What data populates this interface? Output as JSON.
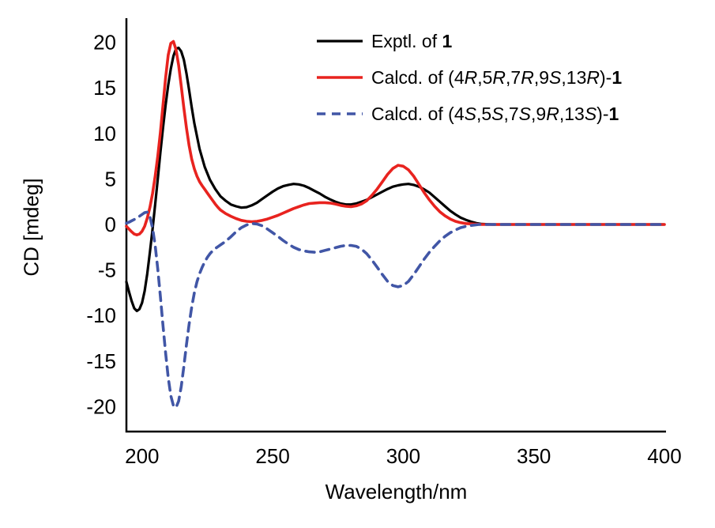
{
  "chart_data": {
    "type": "line",
    "title": "",
    "xlabel": "Wavelength/nm",
    "ylabel": "CD [mdeg]",
    "xlim": [
      194,
      400
    ],
    "ylim": [
      -22.7,
      22.7
    ],
    "x_ticks": [
      200,
      250,
      300,
      350,
      400
    ],
    "y_ticks": [
      20,
      15,
      10,
      5,
      0,
      -5,
      -10,
      -15,
      -20
    ],
    "grid": false,
    "legend_position": "upper-right-inside",
    "series": [
      {
        "key": "exptl",
        "name": "Exptl. of 1",
        "color": "#000000",
        "style": "solid",
        "width": 3.2,
        "points": [
          [
            194,
            -6.3
          ],
          [
            195,
            -7.4
          ],
          [
            196,
            -8.4
          ],
          [
            197,
            -9.2
          ],
          [
            198,
            -9.5
          ],
          [
            199,
            -9.3
          ],
          [
            200,
            -8.6
          ],
          [
            201,
            -7.3
          ],
          [
            202,
            -5.4
          ],
          [
            203,
            -3.0
          ],
          [
            204,
            -0.5
          ],
          [
            205,
            2.2
          ],
          [
            206,
            5.0
          ],
          [
            207,
            7.9
          ],
          [
            208,
            10.6
          ],
          [
            209,
            13.1
          ],
          [
            210,
            15.3
          ],
          [
            211,
            17.1
          ],
          [
            212,
            18.5
          ],
          [
            213,
            19.3
          ],
          [
            214,
            19.4
          ],
          [
            215,
            19.0
          ],
          [
            216,
            18.1
          ],
          [
            217,
            16.6
          ],
          [
            218,
            14.8
          ],
          [
            219,
            12.9
          ],
          [
            220,
            11.1
          ],
          [
            222,
            8.3
          ],
          [
            224,
            6.3
          ],
          [
            226,
            4.9
          ],
          [
            228,
            3.9
          ],
          [
            230,
            3.1
          ],
          [
            232,
            2.6
          ],
          [
            234,
            2.2
          ],
          [
            236,
            2.0
          ],
          [
            238,
            1.85
          ],
          [
            240,
            1.9
          ],
          [
            242,
            2.1
          ],
          [
            244,
            2.4
          ],
          [
            246,
            2.8
          ],
          [
            248,
            3.2
          ],
          [
            250,
            3.6
          ],
          [
            252,
            3.95
          ],
          [
            254,
            4.2
          ],
          [
            256,
            4.35
          ],
          [
            258,
            4.45
          ],
          [
            260,
            4.4
          ],
          [
            262,
            4.25
          ],
          [
            264,
            4.0
          ],
          [
            266,
            3.7
          ],
          [
            268,
            3.4
          ],
          [
            270,
            3.05
          ],
          [
            272,
            2.75
          ],
          [
            274,
            2.5
          ],
          [
            276,
            2.3
          ],
          [
            278,
            2.2
          ],
          [
            280,
            2.2
          ],
          [
            282,
            2.3
          ],
          [
            284,
            2.5
          ],
          [
            286,
            2.7
          ],
          [
            288,
            3.0
          ],
          [
            290,
            3.3
          ],
          [
            292,
            3.6
          ],
          [
            294,
            3.9
          ],
          [
            296,
            4.15
          ],
          [
            298,
            4.3
          ],
          [
            300,
            4.4
          ],
          [
            302,
            4.45
          ],
          [
            304,
            4.35
          ],
          [
            306,
            4.15
          ],
          [
            308,
            3.85
          ],
          [
            310,
            3.5
          ],
          [
            312,
            3.0
          ],
          [
            314,
            2.5
          ],
          [
            316,
            2.0
          ],
          [
            318,
            1.5
          ],
          [
            320,
            1.1
          ],
          [
            322,
            0.75
          ],
          [
            324,
            0.5
          ],
          [
            326,
            0.3
          ],
          [
            328,
            0.15
          ],
          [
            330,
            0.05
          ],
          [
            334,
            0
          ],
          [
            340,
            0
          ],
          [
            350,
            0
          ],
          [
            360,
            0
          ],
          [
            370,
            0
          ],
          [
            380,
            0
          ],
          [
            390,
            0
          ],
          [
            400,
            0
          ]
        ]
      },
      {
        "key": "calcd-r",
        "name": "Calcd. of (4R,5R,7R,9S,13R)-1",
        "color": "#e8231f",
        "style": "solid",
        "width": 3.6,
        "points": [
          [
            194,
            -0.2
          ],
          [
            195,
            -0.5
          ],
          [
            196,
            -0.8
          ],
          [
            197,
            -1.05
          ],
          [
            198,
            -1.15
          ],
          [
            199,
            -1.05
          ],
          [
            200,
            -0.75
          ],
          [
            201,
            -0.2
          ],
          [
            202,
            0.7
          ],
          [
            203,
            1.9
          ],
          [
            204,
            3.4
          ],
          [
            205,
            5.3
          ],
          [
            206,
            7.5
          ],
          [
            207,
            10.1
          ],
          [
            208,
            13.1
          ],
          [
            209,
            16.1
          ],
          [
            210,
            18.6
          ],
          [
            211,
            19.9
          ],
          [
            212,
            20.1
          ],
          [
            213,
            19.2
          ],
          [
            214,
            17.5
          ],
          [
            215,
            15.2
          ],
          [
            216,
            12.8
          ],
          [
            217,
            10.6
          ],
          [
            218,
            8.7
          ],
          [
            219,
            7.2
          ],
          [
            220,
            6.1
          ],
          [
            221,
            5.3
          ],
          [
            222,
            4.7
          ],
          [
            223,
            4.25
          ],
          [
            224,
            3.85
          ],
          [
            225,
            3.45
          ],
          [
            226,
            3.05
          ],
          [
            227,
            2.65
          ],
          [
            228,
            2.25
          ],
          [
            229,
            1.9
          ],
          [
            230,
            1.6
          ],
          [
            232,
            1.2
          ],
          [
            234,
            0.9
          ],
          [
            236,
            0.65
          ],
          [
            238,
            0.45
          ],
          [
            240,
            0.35
          ],
          [
            242,
            0.3
          ],
          [
            244,
            0.35
          ],
          [
            246,
            0.45
          ],
          [
            248,
            0.6
          ],
          [
            250,
            0.8
          ],
          [
            252,
            1.0
          ],
          [
            254,
            1.25
          ],
          [
            256,
            1.5
          ],
          [
            258,
            1.75
          ],
          [
            260,
            1.95
          ],
          [
            262,
            2.15
          ],
          [
            264,
            2.3
          ],
          [
            266,
            2.35
          ],
          [
            268,
            2.4
          ],
          [
            270,
            2.4
          ],
          [
            272,
            2.35
          ],
          [
            274,
            2.25
          ],
          [
            276,
            2.1
          ],
          [
            278,
            2.0
          ],
          [
            280,
            1.95
          ],
          [
            282,
            2.05
          ],
          [
            284,
            2.25
          ],
          [
            286,
            2.6
          ],
          [
            288,
            3.2
          ],
          [
            290,
            3.9
          ],
          [
            292,
            4.7
          ],
          [
            294,
            5.5
          ],
          [
            296,
            6.15
          ],
          [
            298,
            6.5
          ],
          [
            300,
            6.4
          ],
          [
            302,
            6.0
          ],
          [
            304,
            5.3
          ],
          [
            306,
            4.4
          ],
          [
            308,
            3.5
          ],
          [
            310,
            2.7
          ],
          [
            312,
            2.0
          ],
          [
            314,
            1.4
          ],
          [
            316,
            0.95
          ],
          [
            318,
            0.6
          ],
          [
            320,
            0.35
          ],
          [
            322,
            0.2
          ],
          [
            324,
            0.1
          ],
          [
            327,
            0.05
          ],
          [
            330,
            0
          ],
          [
            340,
            0
          ],
          [
            350,
            0
          ],
          [
            360,
            0
          ],
          [
            370,
            0
          ],
          [
            380,
            0
          ],
          [
            390,
            0
          ],
          [
            400,
            0
          ]
        ]
      },
      {
        "key": "calcd-s",
        "name": "Calcd. of (4S,5S,7S,9R,13S)-1",
        "color": "#4156a6",
        "style": "dashed",
        "dash": "11 8",
        "width": 3.6,
        "points": [
          [
            194,
            0.15
          ],
          [
            195,
            0.25
          ],
          [
            196,
            0.4
          ],
          [
            197,
            0.55
          ],
          [
            198,
            0.7
          ],
          [
            199,
            0.9
          ],
          [
            200,
            1.1
          ],
          [
            201,
            1.3
          ],
          [
            202,
            1.35
          ],
          [
            203,
            0.85
          ],
          [
            204,
            -0.4
          ],
          [
            205,
            -2.3
          ],
          [
            206,
            -4.9
          ],
          [
            207,
            -7.9
          ],
          [
            208,
            -11.1
          ],
          [
            209,
            -14.1
          ],
          [
            210,
            -16.8
          ],
          [
            211,
            -18.8
          ],
          [
            212,
            -19.9
          ],
          [
            213,
            -20.1
          ],
          [
            214,
            -19.4
          ],
          [
            215,
            -17.8
          ],
          [
            216,
            -15.6
          ],
          [
            217,
            -13.2
          ],
          [
            218,
            -11.0
          ],
          [
            219,
            -9.1
          ],
          [
            220,
            -7.5
          ],
          [
            221,
            -6.3
          ],
          [
            222,
            -5.4
          ],
          [
            223,
            -4.7
          ],
          [
            224,
            -4.1
          ],
          [
            225,
            -3.6
          ],
          [
            226,
            -3.2
          ],
          [
            227,
            -2.9
          ],
          [
            228,
            -2.65
          ],
          [
            229,
            -2.45
          ],
          [
            230,
            -2.25
          ],
          [
            232,
            -1.85
          ],
          [
            234,
            -1.35
          ],
          [
            236,
            -0.8
          ],
          [
            238,
            -0.35
          ],
          [
            240,
            -0.05
          ],
          [
            242,
            0.1
          ],
          [
            244,
            0.05
          ],
          [
            246,
            -0.15
          ],
          [
            248,
            -0.5
          ],
          [
            250,
            -0.9
          ],
          [
            252,
            -1.3
          ],
          [
            254,
            -1.75
          ],
          [
            256,
            -2.15
          ],
          [
            258,
            -2.5
          ],
          [
            260,
            -2.75
          ],
          [
            262,
            -2.9
          ],
          [
            264,
            -3.0
          ],
          [
            266,
            -3.05
          ],
          [
            268,
            -3.0
          ],
          [
            270,
            -2.85
          ],
          [
            272,
            -2.7
          ],
          [
            274,
            -2.55
          ],
          [
            276,
            -2.4
          ],
          [
            278,
            -2.3
          ],
          [
            280,
            -2.3
          ],
          [
            282,
            -2.4
          ],
          [
            284,
            -2.7
          ],
          [
            286,
            -3.2
          ],
          [
            288,
            -3.9
          ],
          [
            290,
            -4.7
          ],
          [
            292,
            -5.5
          ],
          [
            294,
            -6.25
          ],
          [
            296,
            -6.7
          ],
          [
            298,
            -6.85
          ],
          [
            300,
            -6.7
          ],
          [
            302,
            -6.25
          ],
          [
            304,
            -5.5
          ],
          [
            306,
            -4.65
          ],
          [
            308,
            -3.8
          ],
          [
            310,
            -3.05
          ],
          [
            312,
            -2.4
          ],
          [
            314,
            -1.8
          ],
          [
            316,
            -1.3
          ],
          [
            318,
            -0.9
          ],
          [
            320,
            -0.6
          ],
          [
            322,
            -0.35
          ],
          [
            324,
            -0.2
          ],
          [
            326,
            -0.1
          ],
          [
            329,
            0
          ],
          [
            340,
            0
          ],
          [
            350,
            0
          ],
          [
            360,
            0
          ],
          [
            370,
            0
          ],
          [
            380,
            0
          ],
          [
            390,
            0
          ],
          [
            400,
            0
          ]
        ]
      }
    ]
  },
  "legend": {
    "entries": [
      {
        "series": "exptl",
        "parts": [
          {
            "t": "Exptl. of "
          },
          {
            "t": "1",
            "b": true
          }
        ]
      },
      {
        "series": "calcd-r",
        "parts": [
          {
            "t": "Calcd. of (4"
          },
          {
            "t": "R",
            "i": true
          },
          {
            "t": ",5"
          },
          {
            "t": "R",
            "i": true
          },
          {
            "t": ",7"
          },
          {
            "t": "R",
            "i": true
          },
          {
            "t": ",9"
          },
          {
            "t": "S",
            "i": true
          },
          {
            "t": ",13"
          },
          {
            "t": "R",
            "i": true
          },
          {
            "t": ")-"
          },
          {
            "t": "1",
            "b": true
          }
        ]
      },
      {
        "series": "calcd-s",
        "parts": [
          {
            "t": "Calcd. of (4"
          },
          {
            "t": "S",
            "i": true
          },
          {
            "t": ",5"
          },
          {
            "t": "S",
            "i": true
          },
          {
            "t": ",7"
          },
          {
            "t": "S",
            "i": true
          },
          {
            "t": ",9"
          },
          {
            "t": "R",
            "i": true
          },
          {
            "t": ",13"
          },
          {
            "t": "S",
            "i": true
          },
          {
            "t": ")-"
          },
          {
            "t": "1",
            "b": true
          }
        ]
      }
    ]
  }
}
